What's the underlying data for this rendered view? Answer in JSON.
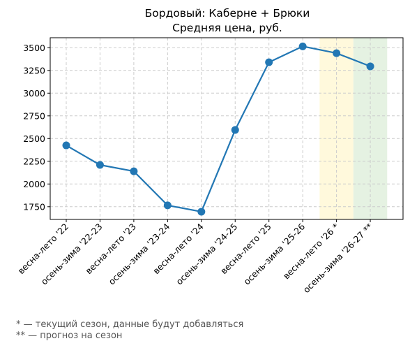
{
  "chart_data": {
    "type": "line",
    "title": "Бордовый: Каберне + Брюки",
    "subtitle": "Средняя цена, руб.",
    "xlabel": "",
    "ylabel": "",
    "categories": [
      "весна-лето '22",
      "осень-зима '22-23",
      "весна-лето '23",
      "осень-зима '23-24",
      "весна-лето '24",
      "осень-зима '24-25",
      "весна-лето '25",
      "осень-зима '25-26",
      "весна-лето '26 *",
      "осень-зима '26-27 **"
    ],
    "series": [
      {
        "values": [
          2425,
          2210,
          2140,
          1765,
          1695,
          2595,
          3340,
          3515,
          3440,
          3295
        ],
        "color": "#2277b4"
      }
    ],
    "yticks": [
      1750,
      2000,
      2250,
      2500,
      2750,
      3000,
      3250,
      3500
    ],
    "ylim": [
      1610,
      3610
    ],
    "grid": true,
    "highlights": [
      {
        "category": "весна-лето '26 *",
        "color": "#fff9dc"
      },
      {
        "category": "осень-зима '26-27 **",
        "color": "#e5f2e2"
      }
    ]
  },
  "notes": {
    "current": "* — текущий сезон, данные будут добавляться",
    "forecast": "** — прогноз на сезон"
  }
}
